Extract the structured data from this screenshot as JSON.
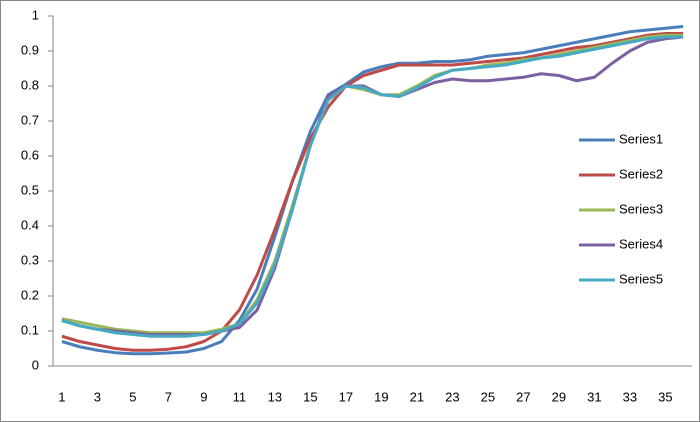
{
  "chart_data": {
    "type": "line",
    "categories": [
      1,
      null,
      3,
      null,
      5,
      null,
      7,
      null,
      9,
      null,
      11,
      null,
      13,
      null,
      15,
      null,
      17,
      null,
      19,
      null,
      21,
      null,
      23,
      null,
      25,
      null,
      27,
      null,
      29,
      null,
      31,
      null,
      33,
      null,
      35,
      null
    ],
    "series": [
      {
        "name": "Series1",
        "color": "#4a7ebb",
        "values": [
          0.07,
          0.055,
          0.045,
          0.038,
          0.035,
          0.035,
          0.037,
          0.04,
          0.05,
          0.07,
          0.13,
          0.22,
          0.37,
          0.53,
          0.67,
          0.775,
          0.805,
          0.84,
          0.855,
          0.865,
          0.865,
          0.87,
          0.87,
          0.875,
          0.885,
          0.89,
          0.895,
          0.905,
          0.915,
          0.925,
          0.935,
          0.945,
          0.955,
          0.96,
          0.965,
          0.97
        ]
      },
      {
        "name": "Series2",
        "color": "#be4b48",
        "values": [
          0.085,
          0.07,
          0.06,
          0.05,
          0.045,
          0.045,
          0.048,
          0.055,
          0.07,
          0.1,
          0.16,
          0.26,
          0.39,
          0.53,
          0.65,
          0.74,
          0.8,
          0.83,
          0.845,
          0.86,
          0.86,
          0.86,
          0.86,
          0.865,
          0.87,
          0.875,
          0.88,
          0.89,
          0.9,
          0.91,
          0.915,
          0.925,
          0.935,
          0.945,
          0.95,
          0.95
        ]
      },
      {
        "name": "Series3",
        "color": "#98b954",
        "values": [
          0.135,
          0.125,
          0.115,
          0.105,
          0.1,
          0.095,
          0.095,
          0.095,
          0.095,
          0.105,
          0.12,
          0.19,
          0.3,
          0.46,
          0.63,
          0.76,
          0.8,
          0.79,
          0.775,
          0.775,
          0.8,
          0.83,
          0.845,
          0.85,
          0.86,
          0.865,
          0.875,
          0.88,
          0.89,
          0.9,
          0.91,
          0.92,
          0.93,
          0.94,
          0.945,
          0.945
        ]
      },
      {
        "name": "Series4",
        "color": "#7d60a0",
        "values": [
          0.13,
          0.115,
          0.105,
          0.1,
          0.095,
          0.09,
          0.09,
          0.09,
          0.09,
          0.1,
          0.11,
          0.16,
          0.28,
          0.45,
          0.63,
          0.77,
          0.8,
          0.8,
          0.775,
          0.77,
          0.79,
          0.81,
          0.82,
          0.815,
          0.815,
          0.82,
          0.825,
          0.835,
          0.83,
          0.815,
          0.825,
          0.865,
          0.9,
          0.925,
          0.935,
          0.94
        ]
      },
      {
        "name": "Series5",
        "color": "#46aac5",
        "values": [
          0.13,
          0.115,
          0.105,
          0.095,
          0.09,
          0.085,
          0.085,
          0.085,
          0.09,
          0.1,
          0.12,
          0.18,
          0.29,
          0.45,
          0.63,
          0.76,
          0.8,
          0.795,
          0.775,
          0.77,
          0.795,
          0.825,
          0.845,
          0.85,
          0.855,
          0.86,
          0.87,
          0.88,
          0.885,
          0.895,
          0.905,
          0.915,
          0.925,
          0.935,
          0.94,
          0.94
        ]
      }
    ],
    "ylim": [
      0,
      1
    ],
    "yticks": [
      0,
      0.1,
      0.2,
      0.3,
      0.4,
      0.5,
      0.6,
      0.7,
      0.8,
      0.9,
      1
    ],
    "grid": false,
    "legend": "right"
  }
}
